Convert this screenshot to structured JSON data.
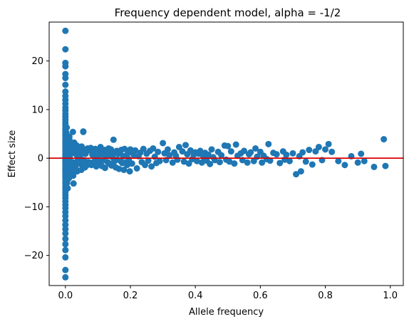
{
  "chart_data": {
    "type": "scatter",
    "title": "Frequency dependent model, alpha = -1/2",
    "xlabel": "Allele frequency",
    "ylabel": "Effect size",
    "xlim": [
      -0.05,
      1.04
    ],
    "ylim": [
      -26.2,
      28.0
    ],
    "x_ticks": [
      0.0,
      0.2,
      0.4,
      0.6,
      0.8,
      1.0
    ],
    "x_tick_labels": [
      "0.0",
      "0.2",
      "0.4",
      "0.6",
      "0.8",
      "1.0"
    ],
    "y_ticks": [
      -20,
      -10,
      0,
      10,
      20
    ],
    "y_tick_labels": [
      "−20",
      "−10",
      "0",
      "10",
      "20"
    ],
    "grid": false,
    "marker_color": "#1f77b4",
    "reference_line": {
      "y": 0,
      "color": "#dd0000"
    },
    "series": [
      {
        "x": [
          0.0,
          0.0,
          0.0,
          0.0,
          0.0,
          0.0,
          0.0,
          0.0,
          0.0,
          0.0,
          0.0,
          0.0,
          0.0,
          0.0,
          0.0,
          0.0,
          0.0,
          0.0,
          0.0,
          0.0,
          0.0,
          0.0,
          0.0,
          0.0,
          0.0,
          0.0,
          0.0,
          0.0,
          0.0,
          0.0,
          0.0,
          0.0,
          0.0,
          0.0,
          0.0,
          0.0,
          0.0,
          0.0,
          0.0,
          0.0,
          0.0,
          0.0,
          0.0,
          0.0,
          0.0,
          0.0,
          0.0,
          0.0,
          0.0,
          0.0,
          0.0,
          0.0,
          0.0,
          0.0,
          0.0,
          0.0,
          0.0,
          0.0,
          0.0,
          0.0,
          0.0,
          0.0,
          0.003,
          0.005,
          0.004,
          0.006,
          0.008,
          0.007,
          0.004,
          0.005,
          0.003,
          0.006,
          0.008,
          0.005,
          0.004,
          0.007,
          0.009,
          0.005,
          0.006,
          0.003,
          0.008,
          0.005,
          0.007,
          0.006,
          0.004,
          0.009,
          0.012,
          0.015,
          0.018,
          0.011,
          0.014,
          0.017,
          0.013,
          0.016,
          0.019,
          0.012,
          0.015,
          0.018,
          0.011,
          0.014,
          0.017,
          0.013,
          0.016,
          0.02,
          0.022,
          0.021,
          0.023,
          0.024,
          0.026,
          0.028,
          0.03,
          0.032,
          0.034,
          0.027,
          0.029,
          0.031,
          0.033,
          0.035,
          0.036,
          0.038,
          0.025,
          0.037,
          0.039,
          0.04,
          0.042,
          0.041,
          0.045,
          0.048,
          0.05,
          0.052,
          0.055,
          0.058,
          0.06,
          0.046,
          0.049,
          0.053,
          0.057,
          0.055,
          0.062,
          0.065,
          0.068,
          0.07,
          0.055,
          0.06,
          0.072,
          0.075,
          0.078,
          0.08,
          0.083,
          0.086,
          0.09,
          0.092,
          0.095,
          0.098,
          0.1,
          0.103,
          0.105,
          0.108,
          0.11,
          0.112,
          0.115,
          0.118,
          0.12,
          0.122,
          0.125,
          0.128,
          0.13,
          0.133,
          0.135,
          0.138,
          0.14,
          0.142,
          0.145,
          0.148,
          0.15,
          0.152,
          0.155,
          0.158,
          0.16,
          0.163,
          0.165,
          0.168,
          0.17,
          0.172,
          0.175,
          0.178,
          0.18,
          0.182,
          0.185,
          0.188,
          0.19,
          0.193,
          0.195,
          0.198,
          0.2,
          0.205,
          0.21,
          0.215,
          0.22,
          0.225,
          0.23,
          0.235,
          0.24,
          0.245,
          0.25,
          0.255,
          0.26,
          0.265,
          0.27,
          0.275,
          0.28,
          0.285,
          0.29,
          0.3,
          0.305,
          0.31,
          0.315,
          0.32,
          0.33,
          0.335,
          0.34,
          0.345,
          0.35,
          0.36,
          0.365,
          0.37,
          0.375,
          0.38,
          0.385,
          0.39,
          0.395,
          0.4,
          0.405,
          0.41,
          0.415,
          0.42,
          0.425,
          0.43,
          0.435,
          0.44,
          0.445,
          0.45,
          0.455,
          0.46,
          0.47,
          0.475,
          0.48,
          0.49,
          0.495,
          0.5,
          0.505,
          0.51,
          0.52,
          0.525,
          0.53,
          0.54,
          0.545,
          0.55,
          0.56,
          0.565,
          0.57,
          0.58,
          0.585,
          0.59,
          0.6,
          0.605,
          0.61,
          0.62,
          0.625,
          0.63,
          0.64,
          0.65,
          0.66,
          0.67,
          0.675,
          0.68,
          0.69,
          0.7,
          0.71,
          0.72,
          0.725,
          0.73,
          0.74,
          0.75,
          0.76,
          0.77,
          0.78,
          0.79,
          0.8,
          0.81,
          0.82,
          0.84,
          0.86,
          0.88,
          0.9,
          0.91,
          0.92,
          0.95,
          0.98,
          0.985
        ],
        "y": [
          26.2,
          22.4,
          19.6,
          18.9,
          17.3,
          16.5,
          15.1,
          13.7,
          12.8,
          12.0,
          11.2,
          10.4,
          9.8,
          9.1,
          8.5,
          7.9,
          7.3,
          6.8,
          6.2,
          5.7,
          5.1,
          4.6,
          4.0,
          3.5,
          3.0,
          2.5,
          2.0,
          1.5,
          1.0,
          0.6,
          0.2,
          -0.3,
          -0.8,
          -1.2,
          -1.7,
          -2.2,
          -2.7,
          -3.2,
          -3.7,
          -4.2,
          -4.8,
          -5.3,
          -5.9,
          -6.4,
          -7.0,
          -7.6,
          -8.2,
          -8.9,
          -9.6,
          -10.3,
          -11.1,
          -11.9,
          -12.8,
          -13.7,
          -14.6,
          -15.5,
          -16.6,
          -17.7,
          -18.9,
          -20.4,
          -23.0,
          -24.5,
          5.2,
          4.1,
          3.3,
          2.8,
          1.9,
          1.1,
          -0.4,
          -1.5,
          -2.6,
          -3.4,
          -4.3,
          -5.1,
          6.3,
          -6.2,
          2.4,
          -1.9,
          0.8,
          -0.9,
          3.8,
          -2.9,
          1.6,
          -3.9,
          4.6,
          -0.6,
          3.9,
          2.7,
          1.8,
          -1.4,
          -2.3,
          0.9,
          -0.5,
          2.2,
          -3.1,
          4.4,
          -2.8,
          1.3,
          -4.1,
          3.1,
          -1.8,
          0.4,
          2.9,
          -2.5,
          1.7,
          -0.8,
          5.4,
          -3.6,
          2.3,
          -1.6,
          1.1,
          -2.2,
          0.7,
          3.2,
          -0.9,
          1.9,
          -1.3,
          2.6,
          -2.7,
          0.5,
          -5.2,
          1.4,
          -0.3,
          2.1,
          -1.1,
          0.8,
          1.9,
          -1.2,
          2.4,
          -0.7,
          5.4,
          1.3,
          -1.9,
          0.6,
          -2.4,
          1.7,
          -0.4,
          5.5,
          0.9,
          -1.5,
          2.0,
          -0.8,
          1.1,
          -1.3,
          1.6,
          -0.9,
          2.1,
          -1.4,
          0.7,
          1.2,
          -0.6,
          1.9,
          -1.7,
          0.3,
          1.5,
          -0.5,
          -1.2,
          2.3,
          0.8,
          -1.6,
          1.1,
          -0.4,
          1.7,
          -2.0,
          0.5,
          1.3,
          -0.8,
          2.0,
          -1.1,
          0.6,
          1.8,
          -1.5,
          0.2,
          3.8,
          -0.7,
          1.0,
          -1.9,
          1.5,
          -0.3,
          0.9,
          -2.2,
          1.2,
          -0.6,
          1.7,
          -1.0,
          0.4,
          -2.4,
          1.9,
          -0.9,
          0.6,
          -1.4,
          1.1,
          -0.2,
          -2.7,
          1.8,
          -1.1,
          0.7,
          1.6,
          -2.1,
          0.4,
          1.1,
          -0.8,
          1.9,
          -1.4,
          0.9,
          -0.5,
          1.5,
          -1.7,
          2.0,
          0.3,
          -1.0,
          1.3,
          -0.6,
          3.1,
          1.0,
          -0.4,
          1.8,
          0.6,
          -0.9,
          1.2,
          0.5,
          -0.3,
          2.3,
          1.4,
          -0.7,
          2.7,
          0.8,
          -1.1,
          1.6,
          -0.2,
          0.7,
          1.2,
          -0.6,
          0.9,
          1.5,
          -0.9,
          0.3,
          1.1,
          -0.5,
          0.7,
          -1.2,
          1.8,
          0.2,
          -0.4,
          1.3,
          -0.8,
          0.6,
          2.6,
          -0.3,
          2.5,
          -0.7,
          1.4,
          -1.1,
          2.8,
          0.5,
          1.0,
          -0.4,
          1.5,
          -0.9,
          0.8,
          1.2,
          -0.6,
          2.0,
          0.3,
          1.3,
          -0.9,
          0.5,
          -0.2,
          2.9,
          -0.5,
          1.1,
          0.8,
          -1.0,
          1.4,
          -0.3,
          0.7,
          -0.6,
          1.0,
          -3.3,
          0.4,
          -2.7,
          1.2,
          -0.7,
          1.7,
          -1.3,
          1.4,
          2.3,
          -0.4,
          1.8,
          2.9,
          1.3,
          -0.6,
          -1.4,
          0.4,
          -0.9,
          0.9,
          -0.6,
          -1.8,
          3.9,
          -1.6
        ]
      }
    ]
  }
}
